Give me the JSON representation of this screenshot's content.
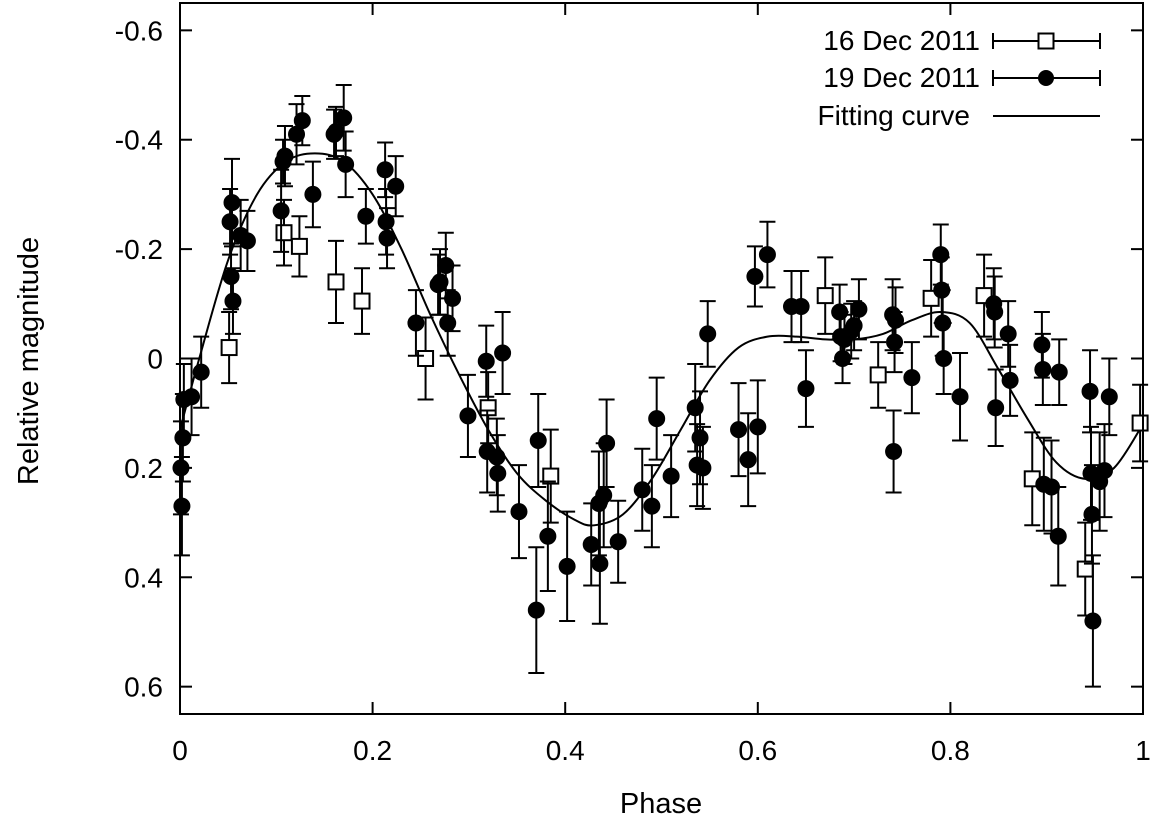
{
  "chart_data": {
    "type": "scatter",
    "title": "",
    "xlabel": "Phase",
    "ylabel": "Relative magnitude",
    "xlim": [
      0,
      1
    ],
    "ylim": [
      0.65,
      -0.65
    ],
    "y_axis_inverted": true,
    "grid": false,
    "legend_placement": "top-right",
    "x_ticks": [
      "0",
      "0.2",
      "0.4",
      "0.6",
      "0.8",
      "1"
    ],
    "y_ticks": [
      "-0.6",
      "-0.4",
      "-0.2",
      "0",
      "0.2",
      "0.4",
      "0.6"
    ],
    "x_tick_values": [
      0,
      0.2,
      0.4,
      0.6,
      0.8,
      1.0
    ],
    "y_tick_values": [
      -0.6,
      -0.4,
      -0.2,
      0,
      0.2,
      0.4,
      0.6
    ],
    "series": [
      {
        "name": "16 Dec 2011",
        "marker": "open-square",
        "points": [
          {
            "x": 0.051,
            "y": -0.02,
            "err": 0.065
          },
          {
            "x": 0.108,
            "y": -0.23,
            "err": 0.06
          },
          {
            "x": 0.124,
            "y": -0.205,
            "err": 0.055
          },
          {
            "x": 0.162,
            "y": -0.14,
            "err": 0.075
          },
          {
            "x": 0.189,
            "y": -0.105,
            "err": 0.06
          },
          {
            "x": 0.255,
            "y": 0.0,
            "err": 0.075
          },
          {
            "x": 0.32,
            "y": 0.09,
            "err": 0.065
          },
          {
            "x": 0.385,
            "y": 0.215,
            "err": 0.085
          },
          {
            "x": 0.67,
            "y": -0.115,
            "err": 0.07
          },
          {
            "x": 0.725,
            "y": 0.03,
            "err": 0.06
          },
          {
            "x": 0.78,
            "y": -0.11,
            "err": 0.07
          },
          {
            "x": 0.835,
            "y": -0.115,
            "err": 0.075
          },
          {
            "x": 0.885,
            "y": 0.22,
            "err": 0.085
          },
          {
            "x": 0.94,
            "y": 0.385,
            "err": 0.085
          },
          {
            "x": 0.997,
            "y": 0.118,
            "err": 0.07
          }
        ]
      },
      {
        "name": "19 Dec 2011",
        "marker": "filled-circle",
        "points": [
          {
            "x": 0.001,
            "y": 0.2,
            "err": 0.085
          },
          {
            "x": 0.002,
            "y": 0.27,
            "err": 0.09
          },
          {
            "x": 0.003,
            "y": 0.145,
            "err": 0.08
          },
          {
            "x": 0.004,
            "y": 0.075,
            "err": 0.065
          },
          {
            "x": 0.012,
            "y": 0.07,
            "err": 0.07
          },
          {
            "x": 0.022,
            "y": 0.025,
            "err": 0.065
          },
          {
            "x": 0.052,
            "y": -0.25,
            "err": 0.06
          },
          {
            "x": 0.053,
            "y": -0.15,
            "err": 0.06
          },
          {
            "x": 0.054,
            "y": -0.285,
            "err": 0.08
          },
          {
            "x": 0.055,
            "y": -0.105,
            "err": 0.06
          },
          {
            "x": 0.063,
            "y": -0.225,
            "err": 0.065
          },
          {
            "x": 0.07,
            "y": -0.215,
            "err": 0.055
          },
          {
            "x": 0.105,
            "y": -0.27,
            "err": 0.075
          },
          {
            "x": 0.107,
            "y": -0.36,
            "err": 0.04
          },
          {
            "x": 0.109,
            "y": -0.37,
            "err": 0.055
          },
          {
            "x": 0.121,
            "y": -0.41,
            "err": 0.055
          },
          {
            "x": 0.127,
            "y": -0.435,
            "err": 0.045
          },
          {
            "x": 0.138,
            "y": -0.3,
            "err": 0.06
          },
          {
            "x": 0.16,
            "y": -0.41,
            "err": 0.045
          },
          {
            "x": 0.162,
            "y": -0.415,
            "err": 0.045
          },
          {
            "x": 0.17,
            "y": -0.44,
            "err": 0.06
          },
          {
            "x": 0.172,
            "y": -0.355,
            "err": 0.06
          },
          {
            "x": 0.193,
            "y": -0.26,
            "err": 0.05
          },
          {
            "x": 0.213,
            "y": -0.345,
            "err": 0.05
          },
          {
            "x": 0.214,
            "y": -0.25,
            "err": 0.06
          },
          {
            "x": 0.215,
            "y": -0.22,
            "err": 0.055
          },
          {
            "x": 0.224,
            "y": -0.315,
            "err": 0.055
          },
          {
            "x": 0.245,
            "y": -0.065,
            "err": 0.06
          },
          {
            "x": 0.268,
            "y": -0.135,
            "err": 0.055
          },
          {
            "x": 0.27,
            "y": -0.14,
            "err": 0.06
          },
          {
            "x": 0.276,
            "y": -0.17,
            "err": 0.06
          },
          {
            "x": 0.278,
            "y": -0.065,
            "err": 0.06
          },
          {
            "x": 0.283,
            "y": -0.11,
            "err": 0.06
          },
          {
            "x": 0.299,
            "y": 0.105,
            "err": 0.075
          },
          {
            "x": 0.318,
            "y": 0.005,
            "err": 0.065
          },
          {
            "x": 0.319,
            "y": 0.17,
            "err": 0.075
          },
          {
            "x": 0.329,
            "y": 0.18,
            "err": 0.07
          },
          {
            "x": 0.33,
            "y": 0.21,
            "err": 0.07
          },
          {
            "x": 0.335,
            "y": -0.01,
            "err": 0.075
          },
          {
            "x": 0.352,
            "y": 0.28,
            "err": 0.085
          },
          {
            "x": 0.37,
            "y": 0.46,
            "err": 0.115
          },
          {
            "x": 0.372,
            "y": 0.15,
            "err": 0.085
          },
          {
            "x": 0.382,
            "y": 0.325,
            "err": 0.1
          },
          {
            "x": 0.402,
            "y": 0.38,
            "err": 0.1
          },
          {
            "x": 0.427,
            "y": 0.34,
            "err": 0.075
          },
          {
            "x": 0.435,
            "y": 0.265,
            "err": 0.095
          },
          {
            "x": 0.436,
            "y": 0.375,
            "err": 0.11
          },
          {
            "x": 0.44,
            "y": 0.25,
            "err": 0.095
          },
          {
            "x": 0.443,
            "y": 0.155,
            "err": 0.08
          },
          {
            "x": 0.455,
            "y": 0.335,
            "err": 0.075
          },
          {
            "x": 0.48,
            "y": 0.24,
            "err": 0.075
          },
          {
            "x": 0.49,
            "y": 0.27,
            "err": 0.075
          },
          {
            "x": 0.495,
            "y": 0.11,
            "err": 0.075
          },
          {
            "x": 0.51,
            "y": 0.215,
            "err": 0.075
          },
          {
            "x": 0.535,
            "y": 0.09,
            "err": 0.08
          },
          {
            "x": 0.537,
            "y": 0.195,
            "err": 0.075
          },
          {
            "x": 0.54,
            "y": 0.145,
            "err": 0.085
          },
          {
            "x": 0.543,
            "y": 0.2,
            "err": 0.075
          },
          {
            "x": 0.548,
            "y": -0.045,
            "err": 0.06
          },
          {
            "x": 0.58,
            "y": 0.13,
            "err": 0.085
          },
          {
            "x": 0.59,
            "y": 0.185,
            "err": 0.085
          },
          {
            "x": 0.597,
            "y": -0.15,
            "err": 0.055
          },
          {
            "x": 0.6,
            "y": 0.125,
            "err": 0.085
          },
          {
            "x": 0.61,
            "y": -0.19,
            "err": 0.06
          },
          {
            "x": 0.635,
            "y": -0.095,
            "err": 0.065
          },
          {
            "x": 0.645,
            "y": -0.095,
            "err": 0.065
          },
          {
            "x": 0.65,
            "y": 0.055,
            "err": 0.07
          },
          {
            "x": 0.685,
            "y": -0.085,
            "err": 0.05
          },
          {
            "x": 0.686,
            "y": -0.04,
            "err": 0.045
          },
          {
            "x": 0.688,
            "y": 0.0,
            "err": 0.045
          },
          {
            "x": 0.69,
            "y": -0.035,
            "err": 0.045
          },
          {
            "x": 0.697,
            "y": -0.05,
            "err": 0.05
          },
          {
            "x": 0.7,
            "y": -0.06,
            "err": 0.045
          },
          {
            "x": 0.705,
            "y": -0.09,
            "err": 0.055
          },
          {
            "x": 0.74,
            "y": -0.08,
            "err": 0.065
          },
          {
            "x": 0.741,
            "y": 0.17,
            "err": 0.075
          },
          {
            "x": 0.742,
            "y": -0.03,
            "err": 0.055
          },
          {
            "x": 0.743,
            "y": -0.07,
            "err": 0.06
          },
          {
            "x": 0.76,
            "y": 0.035,
            "err": 0.065
          },
          {
            "x": 0.79,
            "y": -0.19,
            "err": 0.055
          },
          {
            "x": 0.791,
            "y": -0.125,
            "err": 0.06
          },
          {
            "x": 0.792,
            "y": -0.065,
            "err": 0.06
          },
          {
            "x": 0.793,
            "y": 0.0,
            "err": 0.065
          },
          {
            "x": 0.81,
            "y": 0.07,
            "err": 0.08
          },
          {
            "x": 0.845,
            "y": -0.1,
            "err": 0.065
          },
          {
            "x": 0.846,
            "y": -0.085,
            "err": 0.065
          },
          {
            "x": 0.847,
            "y": 0.09,
            "err": 0.07
          },
          {
            "x": 0.86,
            "y": -0.045,
            "err": 0.06
          },
          {
            "x": 0.862,
            "y": 0.04,
            "err": 0.065
          },
          {
            "x": 0.895,
            "y": -0.025,
            "err": 0.06
          },
          {
            "x": 0.896,
            "y": 0.02,
            "err": 0.065
          },
          {
            "x": 0.897,
            "y": 0.23,
            "err": 0.085
          },
          {
            "x": 0.905,
            "y": 0.235,
            "err": 0.085
          },
          {
            "x": 0.912,
            "y": 0.325,
            "err": 0.09
          },
          {
            "x": 0.913,
            "y": 0.025,
            "err": 0.06
          },
          {
            "x": 0.945,
            "y": 0.06,
            "err": 0.075
          },
          {
            "x": 0.946,
            "y": 0.21,
            "err": 0.085
          },
          {
            "x": 0.947,
            "y": 0.285,
            "err": 0.09
          },
          {
            "x": 0.948,
            "y": 0.48,
            "err": 0.12
          },
          {
            "x": 0.955,
            "y": 0.225,
            "err": 0.09
          },
          {
            "x": 0.96,
            "y": 0.205,
            "err": 0.085
          },
          {
            "x": 0.965,
            "y": 0.07,
            "err": 0.07
          }
        ]
      }
    ],
    "fitting_curve": {
      "name": "Fitting curve",
      "points": [
        [
          0.0,
          0.13
        ],
        [
          0.02,
          0.0
        ],
        [
          0.05,
          -0.18
        ],
        [
          0.08,
          -0.3
        ],
        [
          0.11,
          -0.36
        ],
        [
          0.14,
          -0.375
        ],
        [
          0.17,
          -0.36
        ],
        [
          0.2,
          -0.3
        ],
        [
          0.23,
          -0.2
        ],
        [
          0.26,
          -0.08
        ],
        [
          0.29,
          0.03
        ],
        [
          0.32,
          0.13
        ],
        [
          0.35,
          0.21
        ],
        [
          0.38,
          0.26
        ],
        [
          0.41,
          0.295
        ],
        [
          0.43,
          0.305
        ],
        [
          0.46,
          0.285
        ],
        [
          0.49,
          0.22
        ],
        [
          0.52,
          0.13
        ],
        [
          0.55,
          0.04
        ],
        [
          0.58,
          -0.02
        ],
        [
          0.61,
          -0.04
        ],
        [
          0.64,
          -0.04
        ],
        [
          0.67,
          -0.035
        ],
        [
          0.7,
          -0.035
        ],
        [
          0.73,
          -0.045
        ],
        [
          0.76,
          -0.07
        ],
        [
          0.79,
          -0.085
        ],
        [
          0.82,
          -0.065
        ],
        [
          0.85,
          0.02
        ],
        [
          0.88,
          0.11
        ],
        [
          0.91,
          0.19
        ],
        [
          0.94,
          0.22
        ],
        [
          0.97,
          0.2
        ],
        [
          1.0,
          0.12
        ]
      ]
    }
  }
}
